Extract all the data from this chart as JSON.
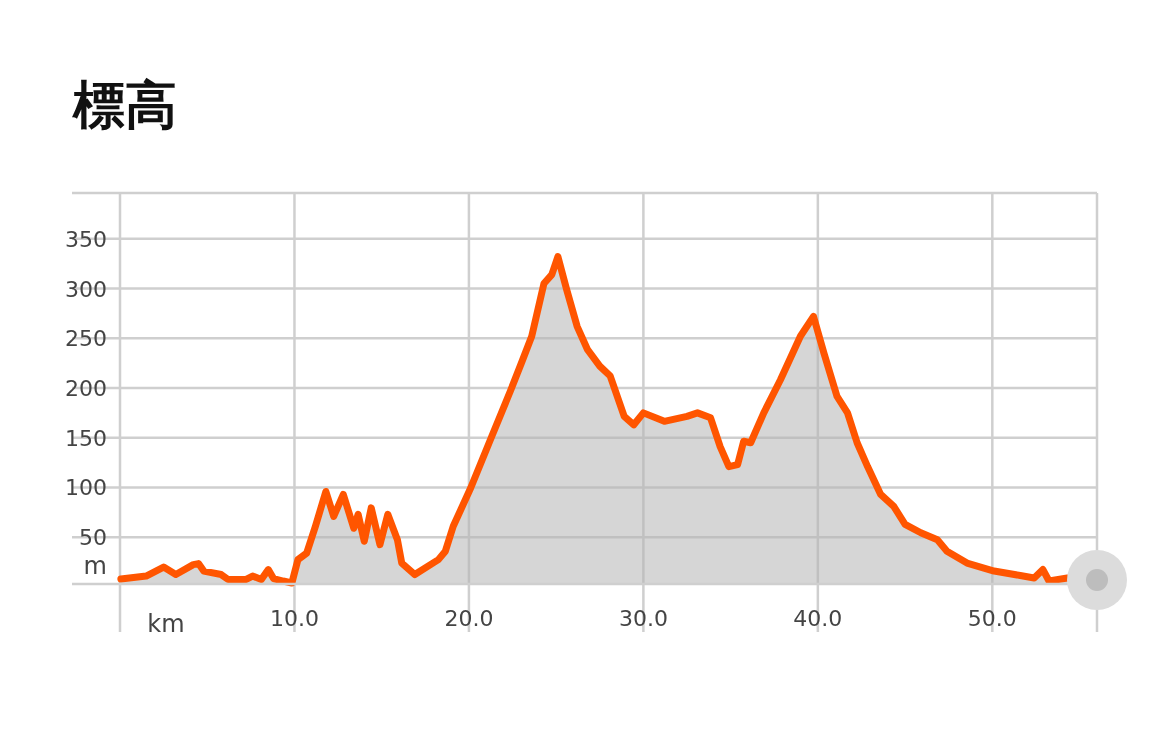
{
  "chart_data": {
    "type": "area",
    "title": "標高",
    "xlabel": "km",
    "ylabel": "m",
    "color": "#ff5500",
    "line_style": "solid",
    "grid": true,
    "x": [
      0.05,
      1.5,
      2.5,
      3.2,
      4.2,
      4.5,
      4.8,
      5.8,
      6.2,
      7.2,
      7.6,
      8.1,
      8.5,
      8.8,
      9.35,
      9.85,
      10.2,
      10.7,
      11.2,
      11.8,
      12.25,
      12.8,
      13.4,
      13.65,
      14.0,
      14.4,
      14.9,
      15.35,
      15.9,
      16.15,
      16.9,
      18.25,
      18.65,
      19.1,
      20.1,
      21.3,
      22.4,
      23.05,
      23.6,
      24.3,
      24.75,
      25.1,
      25.6,
      26.2,
      26.8,
      27.5,
      28.1,
      28.9,
      29.45,
      30.0,
      31.2,
      32.5,
      33.1,
      33.85,
      34.4,
      34.9,
      35.4,
      35.75,
      36.15,
      36.9,
      37.85,
      39.0,
      39.75,
      40.35,
      41.1,
      41.7,
      42.25,
      42.85,
      43.6,
      44.35,
      45.0,
      45.9,
      46.85,
      47.4,
      48.55,
      50.1,
      51.6,
      52.4,
      52.9,
      53.25,
      54.3
    ],
    "values": [
      8,
      11,
      20,
      12.5,
      22.5,
      23.5,
      16,
      12.5,
      7.5,
      7.5,
      11,
      7.5,
      17.5,
      8.5,
      6,
      4,
      27.5,
      34,
      61,
      96,
      71,
      93,
      59,
      73,
      46,
      79.5,
      42.5,
      73,
      47.5,
      24,
      12.5,
      27.5,
      36,
      61,
      99.5,
      151,
      198,
      227,
      252,
      305,
      314,
      332,
      299,
      262,
      238.5,
      222,
      212,
      171.5,
      163,
      175,
      166.5,
      171.5,
      175,
      170,
      141,
      121,
      123,
      146.5,
      145,
      175,
      208,
      252,
      272,
      235,
      191.5,
      175,
      145,
      121,
      93,
      81,
      63,
      54.5,
      47.5,
      36,
      24,
      16,
      11.5,
      9,
      17.5,
      6,
      9
    ],
    "xlim": [
      0,
      56
    ],
    "ylim": [
      3,
      396
    ],
    "xticks": [
      {
        "value": 0,
        "label": null
      },
      {
        "value": 10,
        "label": "10.0"
      },
      {
        "value": 20,
        "label": "20.0"
      },
      {
        "value": 30,
        "label": "30.0"
      },
      {
        "value": 40,
        "label": "40.0"
      },
      {
        "value": 50,
        "label": "50.0"
      }
    ],
    "yticks": [
      50,
      100,
      150,
      200,
      250,
      300,
      350
    ]
  }
}
